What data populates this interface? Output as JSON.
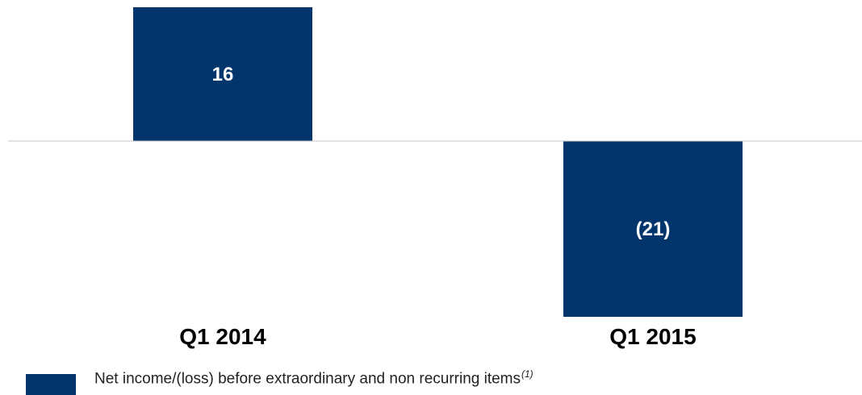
{
  "chart_data": {
    "type": "bar",
    "categories": [
      "Q1 2014",
      "Q1 2015"
    ],
    "series": [
      {
        "name": "Net income/(loss) before extraordinary and non recurring items",
        "values": [
          16,
          -21
        ],
        "value_labels": [
          "16",
          "(21)"
        ]
      }
    ],
    "ylim": [
      -21,
      16
    ],
    "grid": false,
    "legend_position": "bottom-left",
    "legend_note": "(1)",
    "colors": {
      "bar": "#02356c",
      "axis": "#c6c6c6"
    }
  }
}
